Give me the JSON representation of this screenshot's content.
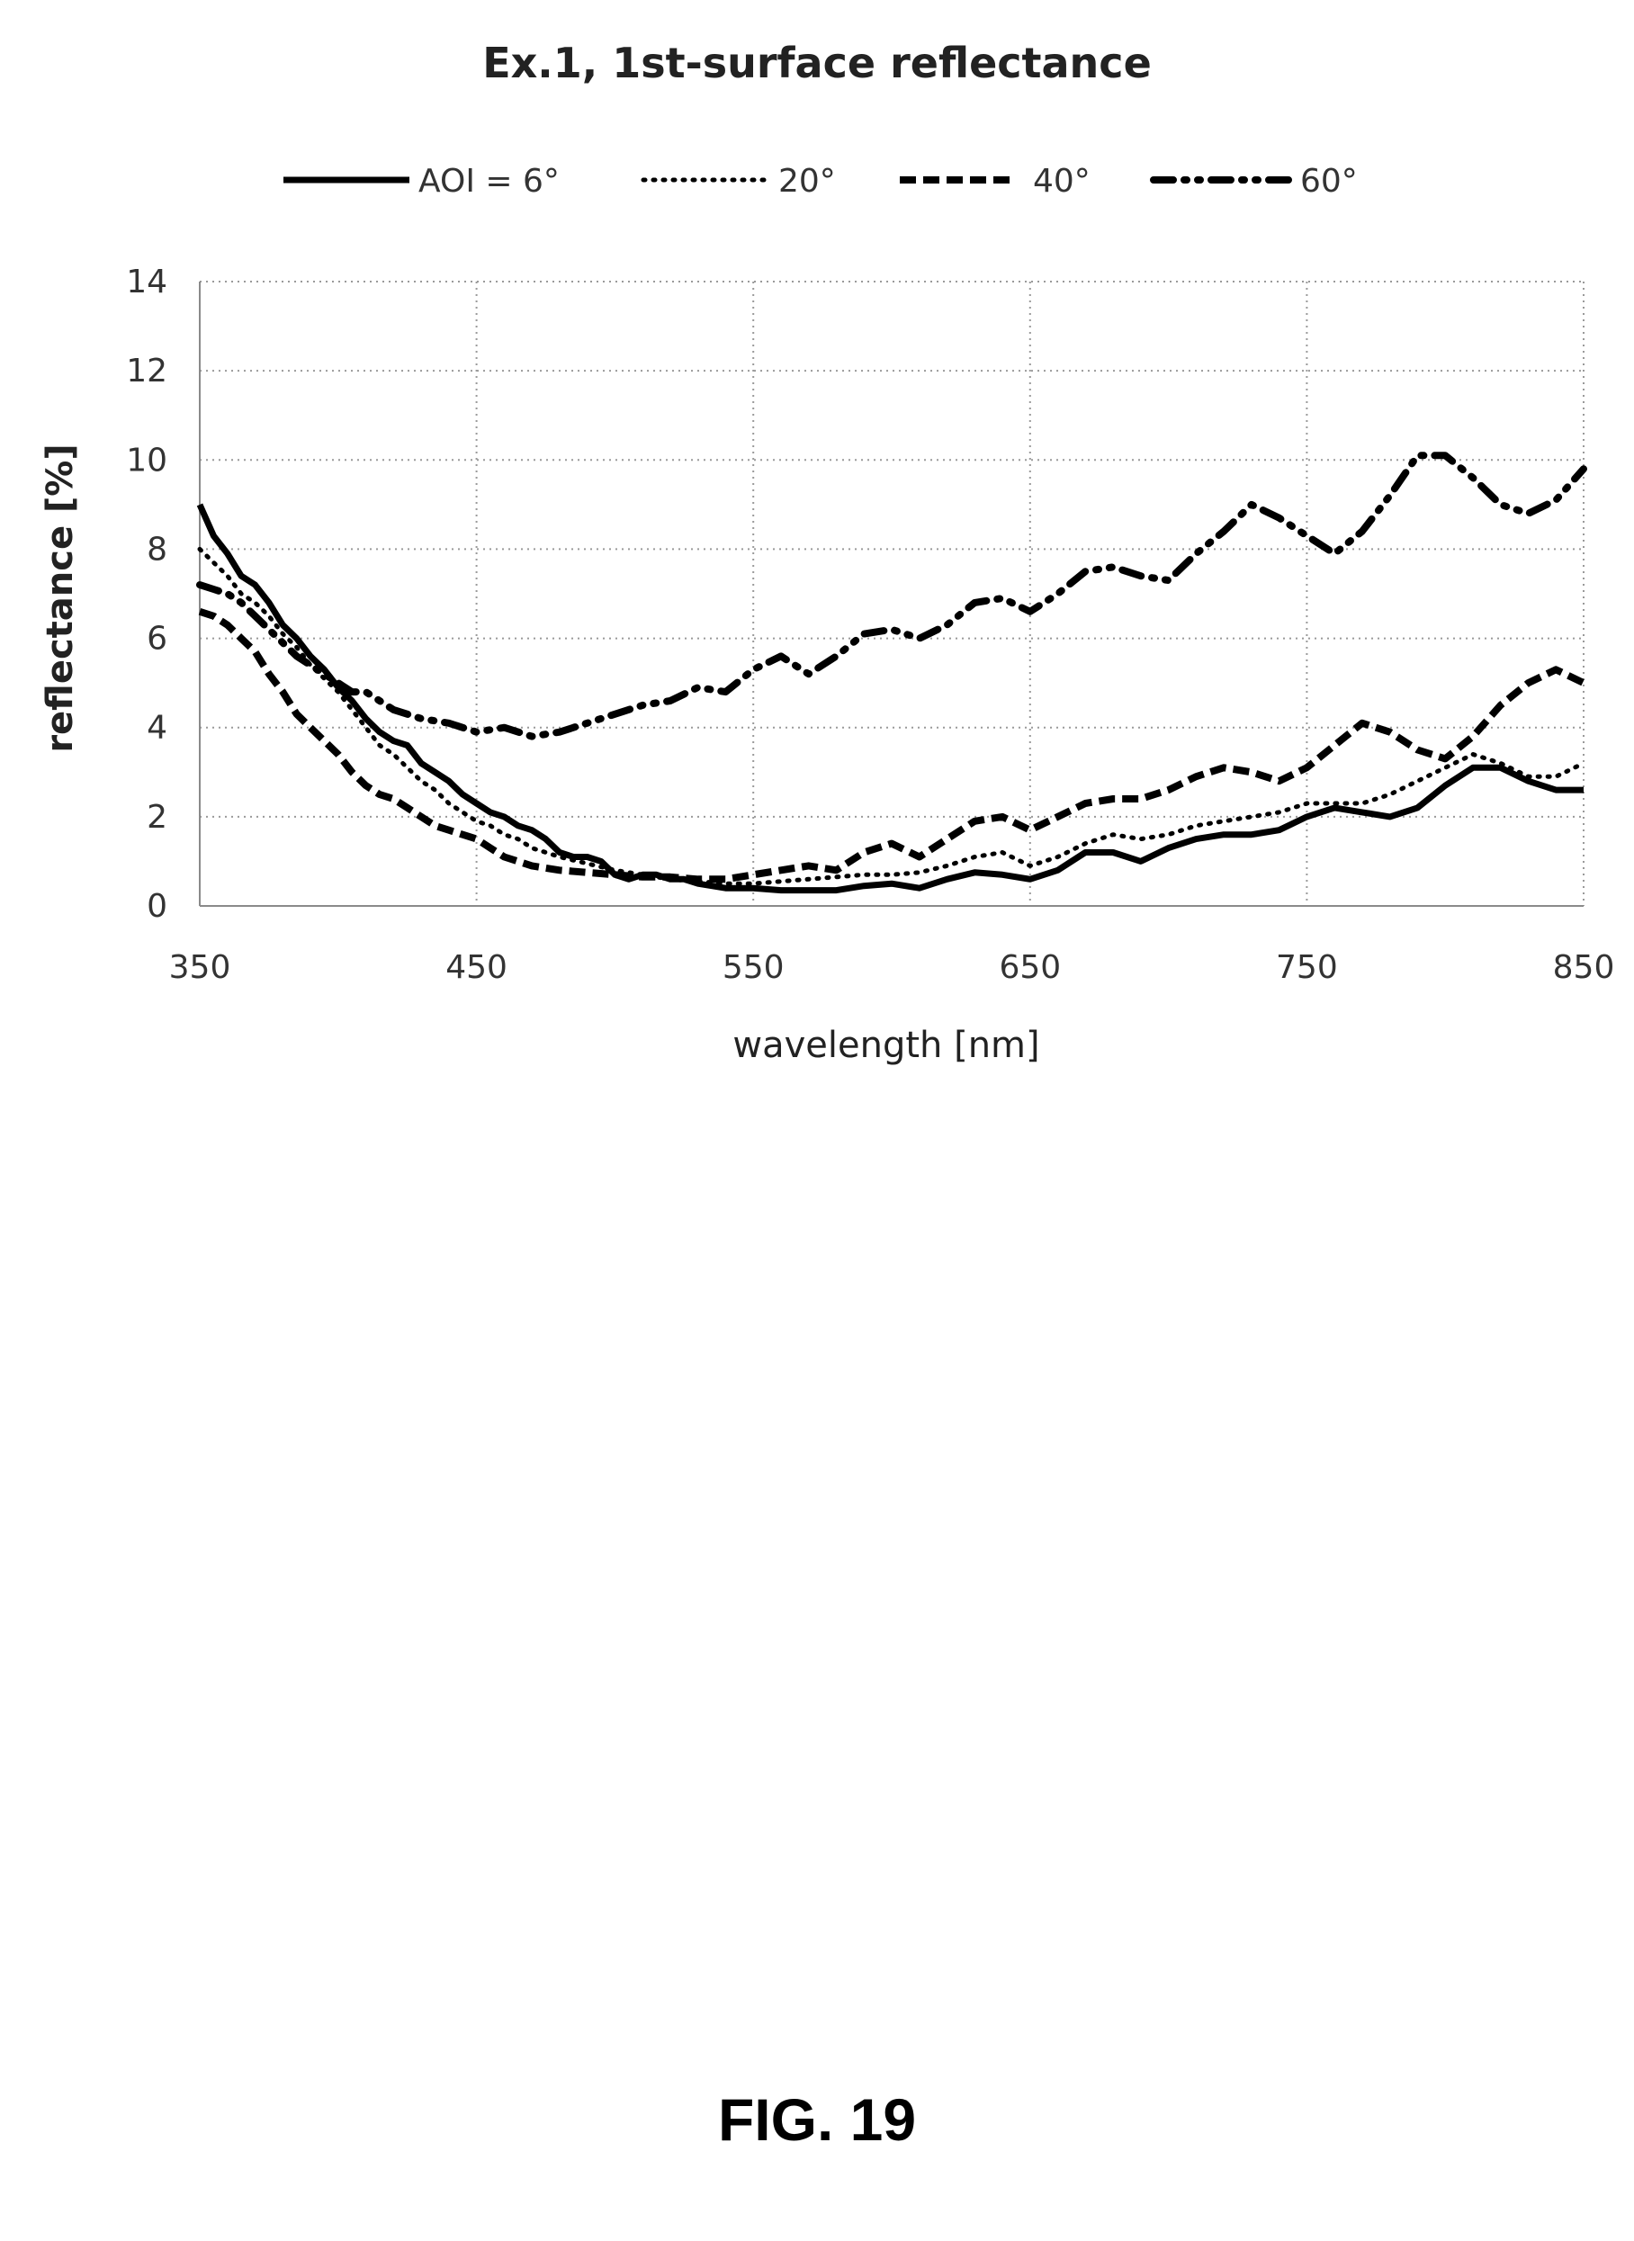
{
  "figure_label": "FIG. 19",
  "chart_data": {
    "type": "line",
    "title": "Ex.1, 1st-surface reflectance",
    "xlabel": "wavelength [nm]",
    "ylabel": "reflectance [%]",
    "xlim": [
      350,
      850
    ],
    "ylim": [
      0,
      14
    ],
    "x_ticks": [
      350,
      450,
      550,
      650,
      750,
      850
    ],
    "y_ticks": [
      0,
      2,
      4,
      6,
      8,
      10,
      12,
      14
    ],
    "grid": true,
    "legend_position": "top",
    "series": [
      {
        "name": "AOI = 6°",
        "style": "solid",
        "color": "#000000",
        "points": [
          [
            350,
            9.0
          ],
          [
            355,
            8.3
          ],
          [
            360,
            7.9
          ],
          [
            365,
            7.4
          ],
          [
            370,
            7.2
          ],
          [
            375,
            6.8
          ],
          [
            380,
            6.3
          ],
          [
            385,
            6.0
          ],
          [
            390,
            5.6
          ],
          [
            395,
            5.3
          ],
          [
            400,
            4.9
          ],
          [
            405,
            4.6
          ],
          [
            410,
            4.2
          ],
          [
            415,
            3.9
          ],
          [
            420,
            3.7
          ],
          [
            425,
            3.6
          ],
          [
            430,
            3.2
          ],
          [
            435,
            3.0
          ],
          [
            440,
            2.8
          ],
          [
            445,
            2.5
          ],
          [
            450,
            2.3
          ],
          [
            455,
            2.1
          ],
          [
            460,
            2.0
          ],
          [
            465,
            1.8
          ],
          [
            470,
            1.7
          ],
          [
            475,
            1.5
          ],
          [
            480,
            1.2
          ],
          [
            485,
            1.1
          ],
          [
            490,
            1.1
          ],
          [
            495,
            1.0
          ],
          [
            500,
            0.7
          ],
          [
            505,
            0.6
          ],
          [
            510,
            0.7
          ],
          [
            515,
            0.7
          ],
          [
            520,
            0.6
          ],
          [
            525,
            0.6
          ],
          [
            530,
            0.5
          ],
          [
            540,
            0.4
          ],
          [
            550,
            0.4
          ],
          [
            560,
            0.35
          ],
          [
            570,
            0.35
          ],
          [
            580,
            0.35
          ],
          [
            590,
            0.45
          ],
          [
            600,
            0.5
          ],
          [
            610,
            0.4
          ],
          [
            620,
            0.6
          ],
          [
            630,
            0.75
          ],
          [
            640,
            0.7
          ],
          [
            650,
            0.6
          ],
          [
            660,
            0.8
          ],
          [
            670,
            1.2
          ],
          [
            680,
            1.2
          ],
          [
            690,
            1.0
          ],
          [
            700,
            1.3
          ],
          [
            710,
            1.5
          ],
          [
            720,
            1.6
          ],
          [
            730,
            1.6
          ],
          [
            740,
            1.7
          ],
          [
            750,
            2.0
          ],
          [
            760,
            2.2
          ],
          [
            770,
            2.1
          ],
          [
            780,
            2.0
          ],
          [
            790,
            2.2
          ],
          [
            800,
            2.7
          ],
          [
            810,
            3.1
          ],
          [
            820,
            3.1
          ],
          [
            830,
            2.8
          ],
          [
            840,
            2.6
          ],
          [
            850,
            2.6
          ]
        ]
      },
      {
        "name": "20°",
        "style": "dotted",
        "color": "#000000",
        "points": [
          [
            350,
            8.0
          ],
          [
            355,
            7.7
          ],
          [
            360,
            7.4
          ],
          [
            365,
            7.0
          ],
          [
            370,
            6.8
          ],
          [
            375,
            6.5
          ],
          [
            380,
            6.1
          ],
          [
            385,
            5.8
          ],
          [
            390,
            5.4
          ],
          [
            395,
            5.1
          ],
          [
            400,
            4.8
          ],
          [
            405,
            4.4
          ],
          [
            410,
            4.0
          ],
          [
            415,
            3.6
          ],
          [
            420,
            3.4
          ],
          [
            425,
            3.1
          ],
          [
            430,
            2.8
          ],
          [
            435,
            2.6
          ],
          [
            440,
            2.3
          ],
          [
            445,
            2.1
          ],
          [
            450,
            1.9
          ],
          [
            455,
            1.8
          ],
          [
            460,
            1.6
          ],
          [
            465,
            1.5
          ],
          [
            470,
            1.3
          ],
          [
            475,
            1.2
          ],
          [
            480,
            1.1
          ],
          [
            490,
            0.95
          ],
          [
            500,
            0.8
          ],
          [
            510,
            0.7
          ],
          [
            520,
            0.6
          ],
          [
            530,
            0.55
          ],
          [
            540,
            0.5
          ],
          [
            550,
            0.5
          ],
          [
            560,
            0.55
          ],
          [
            570,
            0.6
          ],
          [
            580,
            0.65
          ],
          [
            590,
            0.7
          ],
          [
            600,
            0.7
          ],
          [
            610,
            0.75
          ],
          [
            620,
            0.9
          ],
          [
            630,
            1.1
          ],
          [
            640,
            1.2
          ],
          [
            650,
            0.9
          ],
          [
            660,
            1.1
          ],
          [
            670,
            1.4
          ],
          [
            680,
            1.6
          ],
          [
            690,
            1.5
          ],
          [
            700,
            1.6
          ],
          [
            710,
            1.8
          ],
          [
            720,
            1.9
          ],
          [
            730,
            2.0
          ],
          [
            740,
            2.1
          ],
          [
            750,
            2.3
          ],
          [
            760,
            2.3
          ],
          [
            770,
            2.3
          ],
          [
            780,
            2.5
          ],
          [
            790,
            2.8
          ],
          [
            800,
            3.1
          ],
          [
            810,
            3.4
          ],
          [
            820,
            3.2
          ],
          [
            830,
            2.9
          ],
          [
            840,
            2.9
          ],
          [
            850,
            3.2
          ]
        ]
      },
      {
        "name": "40°",
        "style": "dashed",
        "color": "#000000",
        "points": [
          [
            350,
            6.6
          ],
          [
            355,
            6.5
          ],
          [
            360,
            6.3
          ],
          [
            365,
            6.0
          ],
          [
            370,
            5.7
          ],
          [
            375,
            5.2
          ],
          [
            380,
            4.8
          ],
          [
            385,
            4.3
          ],
          [
            390,
            4.0
          ],
          [
            395,
            3.7
          ],
          [
            400,
            3.4
          ],
          [
            405,
            3.0
          ],
          [
            410,
            2.7
          ],
          [
            415,
            2.5
          ],
          [
            420,
            2.4
          ],
          [
            425,
            2.2
          ],
          [
            430,
            2.0
          ],
          [
            435,
            1.8
          ],
          [
            440,
            1.7
          ],
          [
            445,
            1.6
          ],
          [
            450,
            1.5
          ],
          [
            455,
            1.3
          ],
          [
            460,
            1.1
          ],
          [
            465,
            1.0
          ],
          [
            470,
            0.9
          ],
          [
            475,
            0.85
          ],
          [
            480,
            0.8
          ],
          [
            490,
            0.75
          ],
          [
            500,
            0.7
          ],
          [
            510,
            0.65
          ],
          [
            520,
            0.65
          ],
          [
            530,
            0.6
          ],
          [
            540,
            0.6
          ],
          [
            550,
            0.7
          ],
          [
            560,
            0.8
          ],
          [
            570,
            0.9
          ],
          [
            580,
            0.8
          ],
          [
            590,
            1.2
          ],
          [
            600,
            1.4
          ],
          [
            610,
            1.1
          ],
          [
            620,
            1.5
          ],
          [
            630,
            1.9
          ],
          [
            640,
            2.0
          ],
          [
            650,
            1.7
          ],
          [
            660,
            2.0
          ],
          [
            670,
            2.3
          ],
          [
            680,
            2.4
          ],
          [
            690,
            2.4
          ],
          [
            700,
            2.6
          ],
          [
            710,
            2.9
          ],
          [
            720,
            3.1
          ],
          [
            730,
            3.0
          ],
          [
            740,
            2.8
          ],
          [
            750,
            3.1
          ],
          [
            760,
            3.6
          ],
          [
            770,
            4.1
          ],
          [
            780,
            3.9
          ],
          [
            790,
            3.5
          ],
          [
            800,
            3.3
          ],
          [
            810,
            3.8
          ],
          [
            820,
            4.5
          ],
          [
            830,
            5.0
          ],
          [
            840,
            5.3
          ],
          [
            850,
            5.0
          ]
        ]
      },
      {
        "name": "60°",
        "style": "dashdot",
        "color": "#000000",
        "points": [
          [
            350,
            7.2
          ],
          [
            355,
            7.1
          ],
          [
            360,
            7.0
          ],
          [
            365,
            6.8
          ],
          [
            370,
            6.5
          ],
          [
            375,
            6.2
          ],
          [
            380,
            5.9
          ],
          [
            385,
            5.6
          ],
          [
            390,
            5.4
          ],
          [
            395,
            5.2
          ],
          [
            400,
            5.0
          ],
          [
            405,
            4.8
          ],
          [
            410,
            4.8
          ],
          [
            415,
            4.6
          ],
          [
            420,
            4.4
          ],
          [
            430,
            4.2
          ],
          [
            440,
            4.1
          ],
          [
            450,
            3.9
          ],
          [
            460,
            4.0
          ],
          [
            470,
            3.8
          ],
          [
            480,
            3.9
          ],
          [
            490,
            4.1
          ],
          [
            500,
            4.3
          ],
          [
            510,
            4.5
          ],
          [
            520,
            4.6
          ],
          [
            530,
            4.9
          ],
          [
            540,
            4.8
          ],
          [
            550,
            5.3
          ],
          [
            560,
            5.6
          ],
          [
            570,
            5.2
          ],
          [
            580,
            5.6
          ],
          [
            590,
            6.1
          ],
          [
            600,
            6.2
          ],
          [
            610,
            6.0
          ],
          [
            620,
            6.3
          ],
          [
            630,
            6.8
          ],
          [
            640,
            6.9
          ],
          [
            650,
            6.6
          ],
          [
            660,
            7.0
          ],
          [
            670,
            7.5
          ],
          [
            680,
            7.6
          ],
          [
            690,
            7.4
          ],
          [
            700,
            7.3
          ],
          [
            710,
            7.9
          ],
          [
            720,
            8.4
          ],
          [
            730,
            9.0
          ],
          [
            740,
            8.7
          ],
          [
            750,
            8.3
          ],
          [
            760,
            7.9
          ],
          [
            770,
            8.4
          ],
          [
            780,
            9.2
          ],
          [
            790,
            10.1
          ],
          [
            800,
            10.1
          ],
          [
            810,
            9.6
          ],
          [
            820,
            9.0
          ],
          [
            830,
            8.8
          ],
          [
            840,
            9.1
          ],
          [
            850,
            9.8
          ]
        ]
      }
    ]
  }
}
